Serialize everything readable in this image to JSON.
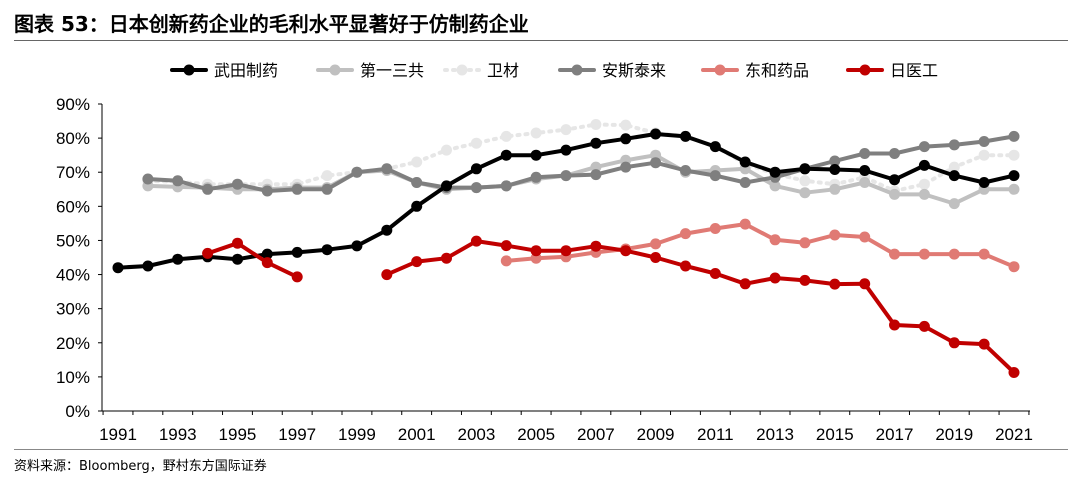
{
  "figure": {
    "title": "图表 53：日本创新药企业的毛利水平显著好于仿制药企业",
    "source": "资料来源：Bloomberg，野村东方国际证券"
  },
  "chart_data": {
    "type": "line",
    "xlim": [
      1991,
      2021
    ],
    "ylim": [
      0,
      90
    ],
    "x_ticks": [
      "1991",
      "1993",
      "1995",
      "1997",
      "1999",
      "2001",
      "2003",
      "2005",
      "2007",
      "2009",
      "2011",
      "2013",
      "2015",
      "2017",
      "2019",
      "2021"
    ],
    "y_ticks": [
      "0%",
      "10%",
      "20%",
      "30%",
      "40%",
      "50%",
      "60%",
      "70%",
      "80%",
      "90%"
    ],
    "legend_position": "top",
    "grid": false,
    "series": [
      {
        "name": "武田制药",
        "color": "#000000",
        "linestyle": "solid",
        "points": [
          [
            1991,
            42
          ],
          [
            1992,
            42.5
          ],
          [
            1993,
            44.5
          ],
          [
            1994,
            45.2
          ],
          [
            1995,
            44.5
          ],
          [
            1996,
            46
          ],
          [
            1997,
            46.5
          ],
          [
            1998,
            47.3
          ],
          [
            1999,
            48.4
          ],
          [
            2000,
            53
          ],
          [
            2001,
            60
          ],
          [
            2002,
            66
          ],
          [
            2003,
            71
          ],
          [
            2004,
            75
          ],
          [
            2005,
            75
          ],
          [
            2006,
            76.5
          ],
          [
            2007,
            78.5
          ],
          [
            2008,
            79.8
          ],
          [
            2009,
            81.2
          ],
          [
            2010,
            80.5
          ],
          [
            2011,
            77.5
          ],
          [
            2012,
            73
          ],
          [
            2013,
            70
          ],
          [
            2014,
            71
          ],
          [
            2015,
            70.8
          ],
          [
            2016,
            70.5
          ],
          [
            2017,
            67.8
          ],
          [
            2018,
            72
          ],
          [
            2019,
            69
          ],
          [
            2020,
            67
          ],
          [
            2021,
            69
          ]
        ]
      },
      {
        "name": "第一三共",
        "color": "#c0c0c0",
        "linestyle": "solid",
        "points": [
          [
            1992,
            66
          ],
          [
            1993,
            65.7
          ],
          [
            1994,
            65.5
          ],
          [
            1995,
            65
          ],
          [
            1996,
            65
          ],
          [
            1997,
            65.5
          ],
          [
            1998,
            65.5
          ],
          [
            1999,
            70
          ],
          [
            2000,
            70.5
          ],
          [
            2001,
            67
          ],
          [
            2002,
            65
          ],
          [
            2003,
            65.5
          ],
          [
            2004,
            66
          ],
          [
            2005,
            68
          ],
          [
            2006,
            69
          ],
          [
            2007,
            71.5
          ],
          [
            2008,
            73.5
          ],
          [
            2009,
            75
          ],
          [
            2010,
            70
          ],
          [
            2011,
            70.5
          ],
          [
            2012,
            71
          ],
          [
            2013,
            66
          ],
          [
            2014,
            64
          ],
          [
            2015,
            65
          ],
          [
            2016,
            67
          ],
          [
            2017,
            63.5
          ],
          [
            2018,
            63.5
          ],
          [
            2019,
            60.8
          ],
          [
            2020,
            65
          ],
          [
            2021,
            65
          ]
        ]
      },
      {
        "name": "卫材",
        "color": "#e6e6e6",
        "linestyle": "dashed",
        "points": [
          [
            1992,
            67.5
          ],
          [
            1993,
            67.2
          ],
          [
            1994,
            66.5
          ],
          [
            1995,
            66.5
          ],
          [
            1996,
            66.5
          ],
          [
            1997,
            66.5
          ],
          [
            1998,
            69
          ],
          [
            1999,
            70
          ],
          [
            2000,
            71
          ],
          [
            2001,
            73
          ],
          [
            2002,
            76.5
          ],
          [
            2003,
            78.5
          ],
          [
            2004,
            80.5
          ],
          [
            2005,
            81.5
          ],
          [
            2006,
            82.5
          ],
          [
            2007,
            84
          ],
          [
            2008,
            83.8
          ],
          [
            2009,
            81.5
          ],
          [
            2010,
            80.5
          ],
          [
            2011,
            77.5
          ],
          [
            2012,
            72.5
          ],
          [
            2013,
            69.5
          ],
          [
            2014,
            67.5
          ],
          [
            2015,
            66.5
          ],
          [
            2016,
            68.5
          ],
          [
            2017,
            64.5
          ],
          [
            2018,
            66.5
          ],
          [
            2019,
            71.5
          ],
          [
            2020,
            75
          ],
          [
            2021,
            75
          ]
        ]
      },
      {
        "name": "安斯泰来",
        "color": "#7f7f7f",
        "linestyle": "solid",
        "points": [
          [
            1992,
            68
          ],
          [
            1993,
            67.5
          ],
          [
            1994,
            65
          ],
          [
            1995,
            66.5
          ],
          [
            1996,
            64.5
          ],
          [
            1997,
            65
          ],
          [
            1998,
            65
          ],
          [
            1999,
            70
          ],
          [
            2000,
            71
          ],
          [
            2001,
            67
          ],
          [
            2002,
            65.5
          ],
          [
            2003,
            65.5
          ],
          [
            2004,
            66
          ],
          [
            2005,
            68.5
          ],
          [
            2006,
            69
          ],
          [
            2007,
            69.3
          ],
          [
            2008,
            71.5
          ],
          [
            2009,
            72.8
          ],
          [
            2010,
            70.5
          ],
          [
            2011,
            69
          ],
          [
            2012,
            67
          ],
          [
            2013,
            68.5
          ],
          [
            2014,
            71
          ],
          [
            2015,
            73.3
          ],
          [
            2016,
            75.5
          ],
          [
            2017,
            75.5
          ],
          [
            2018,
            77.5
          ],
          [
            2019,
            78
          ],
          [
            2020,
            79
          ],
          [
            2021,
            80.5
          ]
        ]
      },
      {
        "name": "东和药品",
        "color": "#e07a74",
        "linestyle": "solid",
        "points": [
          [
            2004,
            44
          ],
          [
            2005,
            44.8
          ],
          [
            2006,
            45.2
          ],
          [
            2007,
            46.5
          ],
          [
            2008,
            47.5
          ],
          [
            2009,
            49
          ],
          [
            2010,
            52
          ],
          [
            2011,
            53.5
          ],
          [
            2012,
            54.8
          ],
          [
            2013,
            50.2
          ],
          [
            2014,
            49.3
          ],
          [
            2015,
            51.6
          ],
          [
            2016,
            51
          ],
          [
            2017,
            46
          ],
          [
            2018,
            46
          ],
          [
            2019,
            46
          ],
          [
            2020,
            46
          ],
          [
            2021,
            42.3
          ]
        ]
      },
      {
        "name": "日医工",
        "color": "#c00000",
        "linestyle": "solid",
        "segments": [
          [
            [
              1994,
              46.2
            ],
            [
              1995,
              49.2
            ],
            [
              1996,
              43.5
            ],
            [
              1997,
              39.3
            ]
          ],
          [
            [
              2000,
              40
            ],
            [
              2001,
              43.8
            ],
            [
              2002,
              44.8
            ],
            [
              2003,
              49.8
            ],
            [
              2004,
              48.5
            ],
            [
              2005,
              47
            ],
            [
              2006,
              47
            ],
            [
              2007,
              48.3
            ],
            [
              2008,
              47
            ],
            [
              2009,
              45
            ],
            [
              2010,
              42.5
            ],
            [
              2011,
              40.3
            ],
            [
              2012,
              37.3
            ],
            [
              2013,
              39
            ],
            [
              2014,
              38.3
            ],
            [
              2015,
              37.2
            ],
            [
              2016,
              37.3
            ],
            [
              2017,
              25.2
            ],
            [
              2018,
              24.8
            ],
            [
              2019,
              20
            ],
            [
              2020,
              19.6
            ],
            [
              2021,
              11.3
            ]
          ]
        ]
      }
    ]
  }
}
